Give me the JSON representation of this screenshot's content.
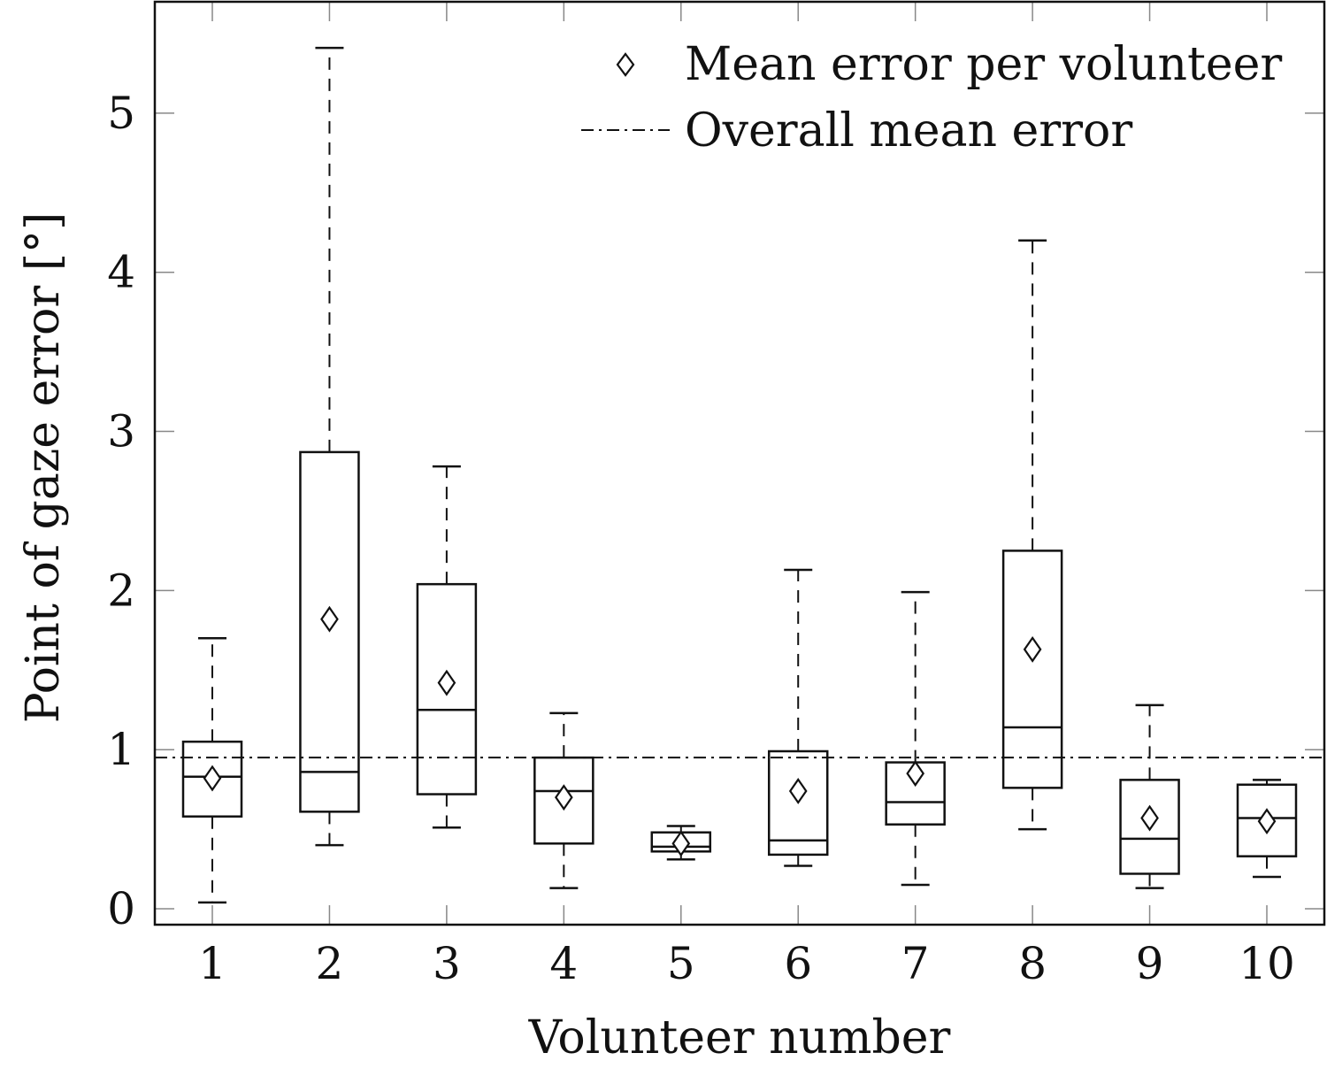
{
  "chart_data": {
    "type": "boxplot",
    "xlabel": "Volunteer number",
    "ylabel": "Point of gaze error [°]",
    "ylim": [
      -0.1,
      5.7
    ],
    "yticks": [
      0,
      1,
      2,
      3,
      4,
      5
    ],
    "categories": [
      "1",
      "2",
      "3",
      "4",
      "5",
      "6",
      "7",
      "8",
      "9",
      "10"
    ],
    "grid": false,
    "legend_position": "top-right",
    "legend": {
      "mean_marker_label": "Mean error per volunteer",
      "overall_mean_label": "Overall mean error"
    },
    "overall_mean": 0.95,
    "boxes": [
      {
        "category": "1",
        "whisker_low": 0.04,
        "q1": 0.58,
        "median": 0.83,
        "q3": 1.05,
        "whisker_high": 1.7,
        "mean": 0.82
      },
      {
        "category": "2",
        "whisker_low": 0.4,
        "q1": 0.61,
        "median": 0.86,
        "q3": 2.87,
        "whisker_high": 5.41,
        "mean": 1.82
      },
      {
        "category": "3",
        "whisker_low": 0.51,
        "q1": 0.72,
        "median": 1.25,
        "q3": 2.04,
        "whisker_high": 2.78,
        "mean": 1.42
      },
      {
        "category": "4",
        "whisker_low": 0.13,
        "q1": 0.41,
        "median": 0.74,
        "q3": 0.95,
        "whisker_high": 1.23,
        "mean": 0.7
      },
      {
        "category": "5",
        "whisker_low": 0.31,
        "q1": 0.36,
        "median": 0.39,
        "q3": 0.48,
        "whisker_high": 0.52,
        "mean": 0.41
      },
      {
        "category": "6",
        "whisker_low": 0.27,
        "q1": 0.34,
        "median": 0.43,
        "q3": 0.99,
        "whisker_high": 2.13,
        "mean": 0.74
      },
      {
        "category": "7",
        "whisker_low": 0.15,
        "q1": 0.53,
        "median": 0.67,
        "q3": 0.92,
        "whisker_high": 1.99,
        "mean": 0.85
      },
      {
        "category": "8",
        "whisker_low": 0.5,
        "q1": 0.76,
        "median": 1.14,
        "q3": 2.25,
        "whisker_high": 4.2,
        "mean": 1.63
      },
      {
        "category": "9",
        "whisker_low": 0.13,
        "q1": 0.22,
        "median": 0.44,
        "q3": 0.81,
        "whisker_high": 1.28,
        "mean": 0.57
      },
      {
        "category": "10",
        "whisker_low": 0.2,
        "q1": 0.33,
        "median": 0.57,
        "q3": 0.78,
        "whisker_high": 0.81,
        "mean": 0.55
      }
    ]
  }
}
